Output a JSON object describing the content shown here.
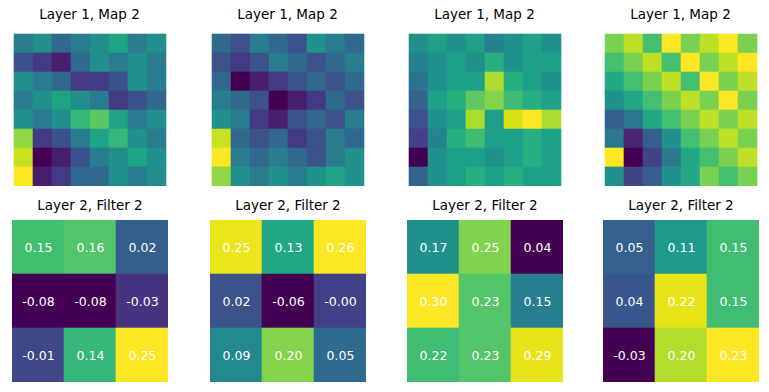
{
  "chart_data": [
    {
      "type": "heatmap",
      "title": "Layer 1, Map 2",
      "tick_labels": false,
      "color": "viridis",
      "values": [
        [
          0.45,
          0.5,
          0.4,
          0.45,
          0.5,
          0.55,
          0.45,
          0.5
        ],
        [
          0.35,
          0.3,
          0.25,
          0.4,
          0.5,
          0.45,
          0.5,
          0.45
        ],
        [
          0.5,
          0.45,
          0.4,
          0.3,
          0.3,
          0.35,
          0.5,
          0.45
        ],
        [
          0.45,
          0.5,
          0.55,
          0.5,
          0.45,
          0.3,
          0.35,
          0.4
        ],
        [
          0.5,
          0.45,
          0.5,
          0.6,
          0.65,
          0.55,
          0.45,
          0.5
        ],
        [
          0.7,
          0.3,
          0.35,
          0.45,
          0.55,
          0.6,
          0.5,
          0.45
        ],
        [
          0.75,
          0.2,
          0.25,
          0.35,
          0.45,
          0.5,
          0.55,
          0.5
        ],
        [
          0.8,
          0.25,
          0.3,
          0.4,
          0.4,
          0.5,
          0.45,
          0.5
        ]
      ]
    },
    {
      "type": "heatmap",
      "title": "Layer 1, Map 2",
      "tick_labels": false,
      "color": "viridis",
      "values": [
        [
          0.35,
          0.3,
          0.4,
          0.35,
          0.3,
          0.45,
          0.4,
          0.35
        ],
        [
          0.3,
          0.25,
          0.3,
          0.4,
          0.35,
          0.3,
          0.35,
          0.4
        ],
        [
          0.35,
          0.15,
          0.2,
          0.25,
          0.3,
          0.35,
          0.3,
          0.35
        ],
        [
          0.4,
          0.35,
          0.3,
          0.15,
          0.2,
          0.25,
          0.35,
          0.3
        ],
        [
          0.45,
          0.4,
          0.25,
          0.2,
          0.3,
          0.35,
          0.3,
          0.4
        ],
        [
          0.7,
          0.35,
          0.3,
          0.35,
          0.25,
          0.3,
          0.4,
          0.35
        ],
        [
          0.75,
          0.4,
          0.35,
          0.4,
          0.35,
          0.3,
          0.4,
          0.45
        ],
        [
          0.65,
          0.45,
          0.4,
          0.45,
          0.4,
          0.45,
          0.5,
          0.45
        ]
      ]
    },
    {
      "type": "heatmap",
      "title": "Layer 1, Map 2",
      "tick_labels": false,
      "color": "viridis",
      "values": [
        [
          0.55,
          0.6,
          0.55,
          0.6,
          0.5,
          0.55,
          0.6,
          0.55
        ],
        [
          0.5,
          0.55,
          0.6,
          0.55,
          0.65,
          0.55,
          0.6,
          0.6
        ],
        [
          0.45,
          0.55,
          0.6,
          0.6,
          0.85,
          0.65,
          0.6,
          0.55
        ],
        [
          0.4,
          0.6,
          0.65,
          0.75,
          0.8,
          0.7,
          0.65,
          0.6
        ],
        [
          0.35,
          0.55,
          0.6,
          0.85,
          0.6,
          0.9,
          0.95,
          0.85
        ],
        [
          0.3,
          0.5,
          0.65,
          0.7,
          0.6,
          0.6,
          0.65,
          0.6
        ],
        [
          0.15,
          0.55,
          0.6,
          0.6,
          0.55,
          0.6,
          0.65,
          0.6
        ],
        [
          0.4,
          0.55,
          0.6,
          0.65,
          0.6,
          0.65,
          0.6,
          0.6
        ]
      ]
    },
    {
      "type": "heatmap",
      "title": "Layer 1, Map 2",
      "tick_labels": false,
      "color": "viridis",
      "values": [
        [
          0.6,
          0.65,
          0.55,
          0.7,
          0.6,
          0.65,
          0.7,
          0.6
        ],
        [
          0.55,
          0.6,
          0.65,
          0.55,
          0.7,
          0.6,
          0.65,
          0.7
        ],
        [
          0.5,
          0.55,
          0.6,
          0.65,
          0.55,
          0.7,
          0.6,
          0.65
        ],
        [
          0.45,
          0.5,
          0.55,
          0.6,
          0.65,
          0.6,
          0.7,
          0.6
        ],
        [
          0.35,
          0.4,
          0.5,
          0.55,
          0.6,
          0.65,
          0.6,
          0.65
        ],
        [
          0.4,
          0.25,
          0.35,
          0.45,
          0.55,
          0.6,
          0.65,
          0.6
        ],
        [
          0.7,
          0.2,
          0.3,
          0.4,
          0.5,
          0.55,
          0.6,
          0.65
        ],
        [
          0.45,
          0.3,
          0.35,
          0.45,
          0.5,
          0.6,
          0.55,
          0.6
        ]
      ]
    },
    {
      "type": "heatmap",
      "title": "Layer 2, Filter 2",
      "tick_labels": false,
      "data_labels": true,
      "color": "viridis",
      "values": [
        [
          0.15,
          0.16,
          0.02
        ],
        [
          -0.08,
          -0.08,
          -0.03
        ],
        [
          -0.01,
          0.14,
          0.25
        ]
      ],
      "value_labels": [
        [
          "0.15",
          "0.16",
          "0.02"
        ],
        [
          "-0.08",
          "-0.08",
          "-0.03"
        ],
        [
          "-0.01",
          "0.14",
          "0.25"
        ]
      ]
    },
    {
      "type": "heatmap",
      "title": "Layer 2, Filter 2",
      "tick_labels": false,
      "data_labels": true,
      "color": "viridis",
      "values": [
        [
          0.25,
          0.13,
          0.26
        ],
        [
          0.02,
          -0.06,
          -0.0
        ],
        [
          0.09,
          0.2,
          0.05
        ]
      ],
      "value_labels": [
        [
          "0.25",
          "0.13",
          "0.26"
        ],
        [
          "0.02",
          "-0.06",
          "-0.00"
        ],
        [
          "0.09",
          "0.20",
          "0.05"
        ]
      ]
    },
    {
      "type": "heatmap",
      "title": "Layer 2, Filter 2",
      "tick_labels": false,
      "data_labels": true,
      "color": "viridis",
      "values": [
        [
          0.17,
          0.25,
          0.04
        ],
        [
          0.3,
          0.23,
          0.15
        ],
        [
          0.22,
          0.23,
          0.29
        ]
      ],
      "value_labels": [
        [
          "0.17",
          "0.25",
          "0.04"
        ],
        [
          "0.30",
          "0.23",
          "0.15"
        ],
        [
          "0.22",
          "0.23",
          "0.29"
        ]
      ]
    },
    {
      "type": "heatmap",
      "title": "Layer 2, Filter 2",
      "tick_labels": false,
      "data_labels": true,
      "color": "viridis",
      "values": [
        [
          0.05,
          0.11,
          0.15
        ],
        [
          0.04,
          0.22,
          0.15
        ],
        [
          -0.03,
          0.2,
          0.23
        ]
      ],
      "value_labels": [
        [
          "0.05",
          "0.11",
          "0.15"
        ],
        [
          "0.04",
          "0.22",
          "0.15"
        ],
        [
          "-0.03",
          "0.20",
          "0.23"
        ]
      ]
    }
  ]
}
